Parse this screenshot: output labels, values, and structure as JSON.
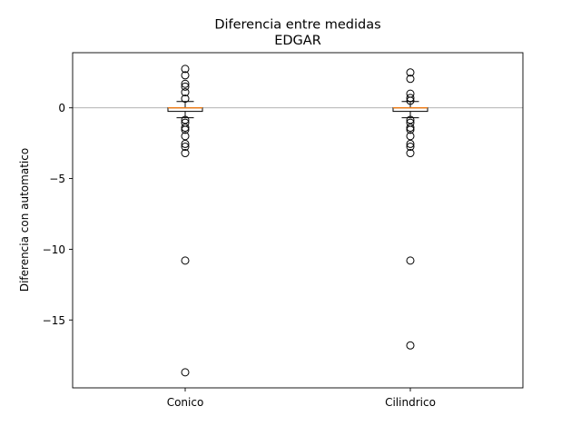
{
  "chart_data": {
    "type": "box",
    "title": "Diferencia entre medidas",
    "subtitle": "EDGAR",
    "xlabel": "",
    "ylabel": "Diferencia con automatico",
    "categories": [
      "Conico",
      "Cilindrico"
    ],
    "ylim": [
      -19.8,
      3.9
    ],
    "yticks": [
      0,
      -5,
      -10,
      -15
    ],
    "reference_line": 0,
    "grid": false,
    "series": [
      {
        "category": "Conico",
        "q1": -0.25,
        "median": 0.0,
        "q3": 0.0,
        "whisker_low": -0.7,
        "whisker_high": 0.45,
        "outliers": [
          2.75,
          2.3,
          1.7,
          1.5,
          1.1,
          0.65,
          -0.85,
          -1.05,
          -1.4,
          -1.55,
          -2.0,
          -2.55,
          -2.75,
          -3.2,
          -10.8,
          -18.7
        ]
      },
      {
        "category": "Cilindrico",
        "q1": -0.25,
        "median": 0.0,
        "q3": 0.0,
        "whisker_low": -0.7,
        "whisker_high": 0.45,
        "outliers": [
          2.5,
          2.05,
          1.0,
          0.7,
          0.5,
          -0.85,
          -1.05,
          -1.4,
          -1.55,
          -2.0,
          -2.55,
          -2.75,
          -3.2,
          -10.8,
          -16.8
        ]
      }
    ],
    "colors": {
      "box": "#000000",
      "median": "#ff7f0e",
      "reference": "#999999",
      "outlier": "#000000"
    }
  }
}
